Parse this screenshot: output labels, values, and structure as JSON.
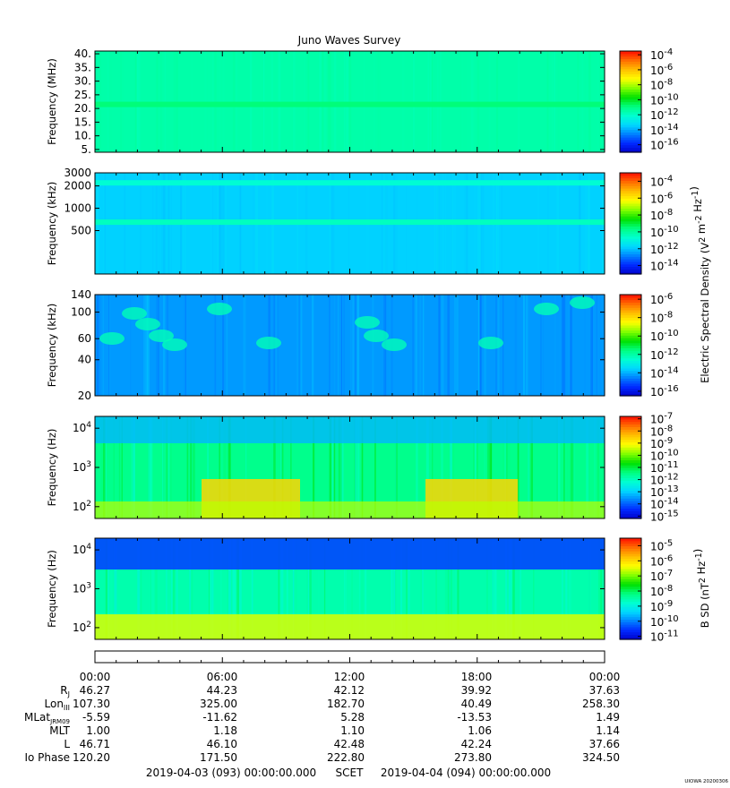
{
  "title": "Juno Waves Survey",
  "stamp": "UIOWA 20200306",
  "colormap": [
    "#0000c8",
    "#0028ff",
    "#0080ff",
    "#00d8ff",
    "#00ffd0",
    "#00ff80",
    "#00e000",
    "#80ff00",
    "#ffff00",
    "#ffc000",
    "#ff7000",
    "#ff1000"
  ],
  "chart_data": [
    {
      "type": "heatmap",
      "ylabel": "Frequency (MHz)",
      "y_scale": "linear",
      "ylim": [
        4,
        41
      ],
      "yticks": [
        "40.",
        "35.",
        "30.",
        "25.",
        "20.",
        "15.",
        "10.",
        "5."
      ],
      "ytick_values": [
        40,
        35,
        30,
        25,
        20,
        15,
        10,
        5
      ],
      "colorbar_ticks": [
        "10-4",
        "10-6",
        "10-8",
        "10-10",
        "10-12",
        "10-14",
        "10-16"
      ],
      "colorbar_exponents": [
        -4,
        -6,
        -8,
        -10,
        -12,
        -14,
        -16
      ],
      "colorbar_range": [
        -17,
        -3.5
      ],
      "background_level": -11.5,
      "bands": [
        {
          "y": 21.5,
          "level": -10.8
        }
      ],
      "noise": "low"
    },
    {
      "type": "heatmap",
      "ylabel": "Frequency (kHz)",
      "y_scale": "log",
      "ylim": [
        130,
        3000
      ],
      "yticks": [
        "3000",
        "2000",
        "1000",
        "500"
      ],
      "ytick_values": [
        3000,
        2000,
        1000,
        500
      ],
      "colorbar_ticks": [
        "10-4",
        "10-6",
        "10-8",
        "10-10",
        "10-12",
        "10-14"
      ],
      "colorbar_exponents": [
        -4,
        -6,
        -8,
        -10,
        -12,
        -14
      ],
      "colorbar_range": [
        -15,
        -3
      ],
      "background_level": -11.8,
      "bands": [
        {
          "y": 2200,
          "level": -10.7
        },
        {
          "y": 650,
          "level": -10.4
        }
      ],
      "noise": "low"
    },
    {
      "type": "heatmap",
      "ylabel": "Frequency (kHz)",
      "y_scale": "log",
      "ylim": [
        20,
        140
      ],
      "yticks": [
        "140",
        "100",
        "60",
        "40",
        "20"
      ],
      "ytick_values": [
        140,
        100,
        60,
        40,
        20
      ],
      "colorbar_ticks": [
        "10-6",
        "10-8",
        "10-10",
        "10-12",
        "10-14",
        "10-16"
      ],
      "colorbar_exponents": [
        -6,
        -8,
        -10,
        -12,
        -14,
        -16
      ],
      "colorbar_range": [
        -16.5,
        -5.5
      ],
      "background_level": -14.2,
      "bands": [],
      "noise": "medium"
    },
    {
      "type": "heatmap",
      "ylabel": "Frequency (Hz)",
      "y_scale": "log",
      "ylim": [
        50,
        20000
      ],
      "yticks": [
        "10^4",
        "10^3",
        "10^2"
      ],
      "ytick_values": [
        10000,
        1000,
        100
      ],
      "colorbar_ticks": [
        "10-7",
        "10-8",
        "10-9",
        "10-10",
        "10-11",
        "10-12",
        "10-13",
        "10-14",
        "10-15"
      ],
      "colorbar_exponents": [
        -7,
        -8,
        -9,
        -10,
        -11,
        -12,
        -13,
        -14,
        -15
      ],
      "colorbar_range": [
        -15.2,
        -6.8
      ],
      "background_level": -11.5,
      "bands": [],
      "noise": "high"
    },
    {
      "type": "heatmap",
      "ylabel": "Frequency (Hz)",
      "y_scale": "log",
      "ylim": [
        50,
        20000
      ],
      "yticks": [
        "10^4",
        "10^3",
        "10^2"
      ],
      "ytick_values": [
        10000,
        1000,
        100
      ],
      "colorbar_ticks": [
        "10-5",
        "10-6",
        "10-7",
        "10-8",
        "10-9",
        "10-10",
        "10-11"
      ],
      "colorbar_exponents": [
        -5,
        -6,
        -7,
        -8,
        -9,
        -10,
        -11
      ],
      "colorbar_range": [
        -11.2,
        -4.5
      ],
      "background_level": -8.5,
      "bands": [],
      "noise": "medium"
    }
  ],
  "colorbar_labels": {
    "electric": "Electric Spectral Density (V^2 m^-2 Hz^-1)",
    "magnetic": "B SD (nT^2 Hz^-1)"
  },
  "ephemeris": {
    "times": [
      "00:00",
      "06:00",
      "12:00",
      "18:00",
      "00:00"
    ],
    "rows": [
      {
        "label": "Rj",
        "values": [
          "46.27",
          "44.23",
          "42.12",
          "39.92",
          "37.63"
        ]
      },
      {
        "label": "LonIII",
        "values": [
          "107.30",
          "325.00",
          "182.70",
          "40.49",
          "258.30"
        ]
      },
      {
        "label": "MLatJRM09",
        "values": [
          "-5.59",
          "-11.62",
          "5.28",
          "-13.53",
          "1.49"
        ]
      },
      {
        "label": "MLT",
        "values": [
          "1.00",
          "1.18",
          "1.10",
          "1.06",
          "1.14"
        ]
      },
      {
        "label": "L",
        "values": [
          "46.71",
          "46.10",
          "42.48",
          "42.24",
          "37.66"
        ]
      },
      {
        "label": "Io Phase",
        "values": [
          "120.20",
          "171.50",
          "222.80",
          "273.80",
          "324.50"
        ]
      }
    ]
  },
  "footer": {
    "start": "2019-04-03 (093) 00:00:00.000",
    "scet": "SCET",
    "end": "2019-04-04 (094) 00:00:00.000"
  }
}
